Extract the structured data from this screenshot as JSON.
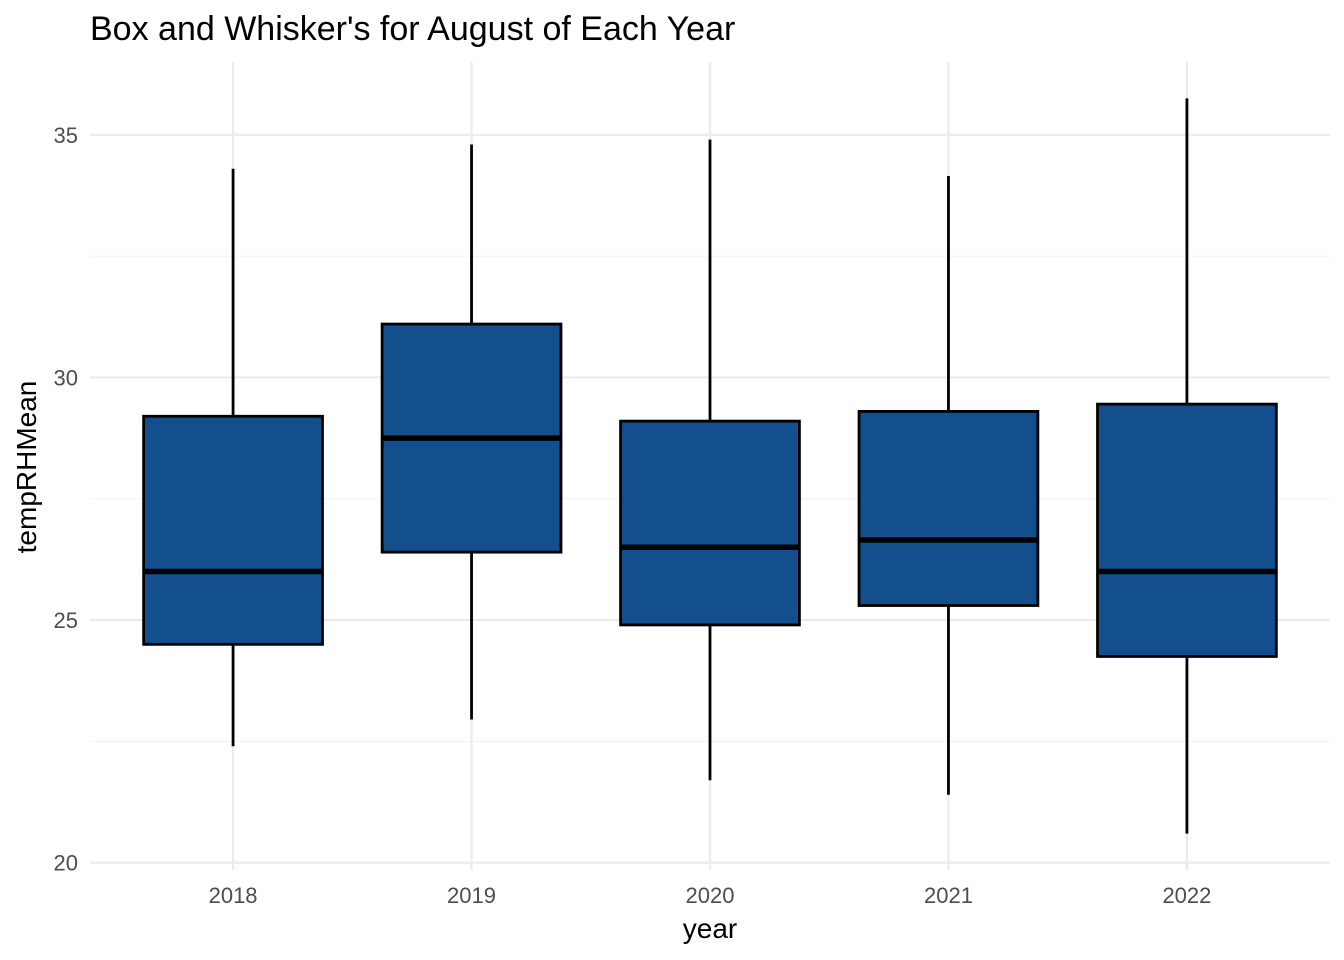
{
  "chart_data": {
    "type": "boxplot",
    "title": "Box and Whisker's for August of Each Year",
    "xlabel": "year",
    "ylabel": "tempRHMean",
    "categories": [
      "2018",
      "2019",
      "2020",
      "2021",
      "2022"
    ],
    "boxes": [
      {
        "category": "2018",
        "whisker_low": 22.4,
        "q1": 24.5,
        "median": 26.0,
        "q3": 29.2,
        "whisker_high": 34.3
      },
      {
        "category": "2019",
        "whisker_low": 22.95,
        "q1": 26.4,
        "median": 28.75,
        "q3": 31.1,
        "whisker_high": 34.8
      },
      {
        "category": "2020",
        "whisker_low": 21.7,
        "q1": 24.9,
        "median": 26.5,
        "q3": 29.1,
        "whisker_high": 34.9
      },
      {
        "category": "2021",
        "whisker_low": 21.4,
        "q1": 25.3,
        "median": 26.65,
        "q3": 29.3,
        "whisker_high": 34.15
      },
      {
        "category": "2022",
        "whisker_low": 20.6,
        "q1": 24.25,
        "median": 26.0,
        "q3": 29.45,
        "whisker_high": 35.75
      }
    ],
    "y_ticks": [
      20,
      25,
      30,
      35
    ],
    "ylim": [
      19.85,
      36.5
    ],
    "grid": true,
    "legend": "none",
    "colors": {
      "box_fill": "#124f8c",
      "box_outline": "#000000",
      "grid": "#ebebeb"
    }
  }
}
